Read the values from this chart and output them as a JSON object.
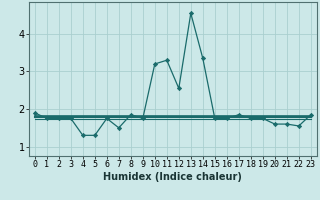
{
  "title": "",
  "xlabel": "Humidex (Indice chaleur)",
  "x": [
    0,
    1,
    2,
    3,
    4,
    5,
    6,
    7,
    8,
    9,
    10,
    11,
    12,
    13,
    14,
    15,
    16,
    17,
    18,
    19,
    20,
    21,
    22,
    23
  ],
  "y_main": [
    1.9,
    1.75,
    1.75,
    1.75,
    1.3,
    1.3,
    1.75,
    1.5,
    1.85,
    1.75,
    3.2,
    3.3,
    2.55,
    4.55,
    3.35,
    1.75,
    1.75,
    1.85,
    1.75,
    1.75,
    1.6,
    1.6,
    1.55,
    1.85
  ],
  "y_flat1": [
    1.82,
    1.82,
    1.82,
    1.82,
    1.82,
    1.82,
    1.82,
    1.82,
    1.82,
    1.82,
    1.82,
    1.82,
    1.82,
    1.82,
    1.82,
    1.82,
    1.82,
    1.82,
    1.82,
    1.82,
    1.82,
    1.82,
    1.82,
    1.82
  ],
  "y_flat2": [
    1.78,
    1.78,
    1.78,
    1.78,
    1.78,
    1.78,
    1.78,
    1.78,
    1.78,
    1.78,
    1.78,
    1.78,
    1.78,
    1.78,
    1.78,
    1.78,
    1.78,
    1.78,
    1.78,
    1.78,
    1.78,
    1.78,
    1.78,
    1.78
  ],
  "y_flat3": [
    1.74,
    1.74,
    1.74,
    1.74,
    1.74,
    1.74,
    1.74,
    1.74,
    1.74,
    1.74,
    1.74,
    1.74,
    1.74,
    1.74,
    1.74,
    1.74,
    1.74,
    1.74,
    1.74,
    1.74,
    1.74,
    1.74,
    1.74,
    1.74
  ],
  "line_color": "#1a6b6b",
  "bg_color": "#cce8e8",
  "grid_color": "#aacfcf",
  "xlim": [
    -0.5,
    23.5
  ],
  "ylim": [
    0.75,
    4.85
  ],
  "yticks": [
    1,
    2,
    3,
    4
  ],
  "xticks": [
    0,
    1,
    2,
    3,
    4,
    5,
    6,
    7,
    8,
    9,
    10,
    11,
    12,
    13,
    14,
    15,
    16,
    17,
    18,
    19,
    20,
    21,
    22,
    23
  ],
  "xlabel_fontsize": 7,
  "tick_fontsize": 6
}
